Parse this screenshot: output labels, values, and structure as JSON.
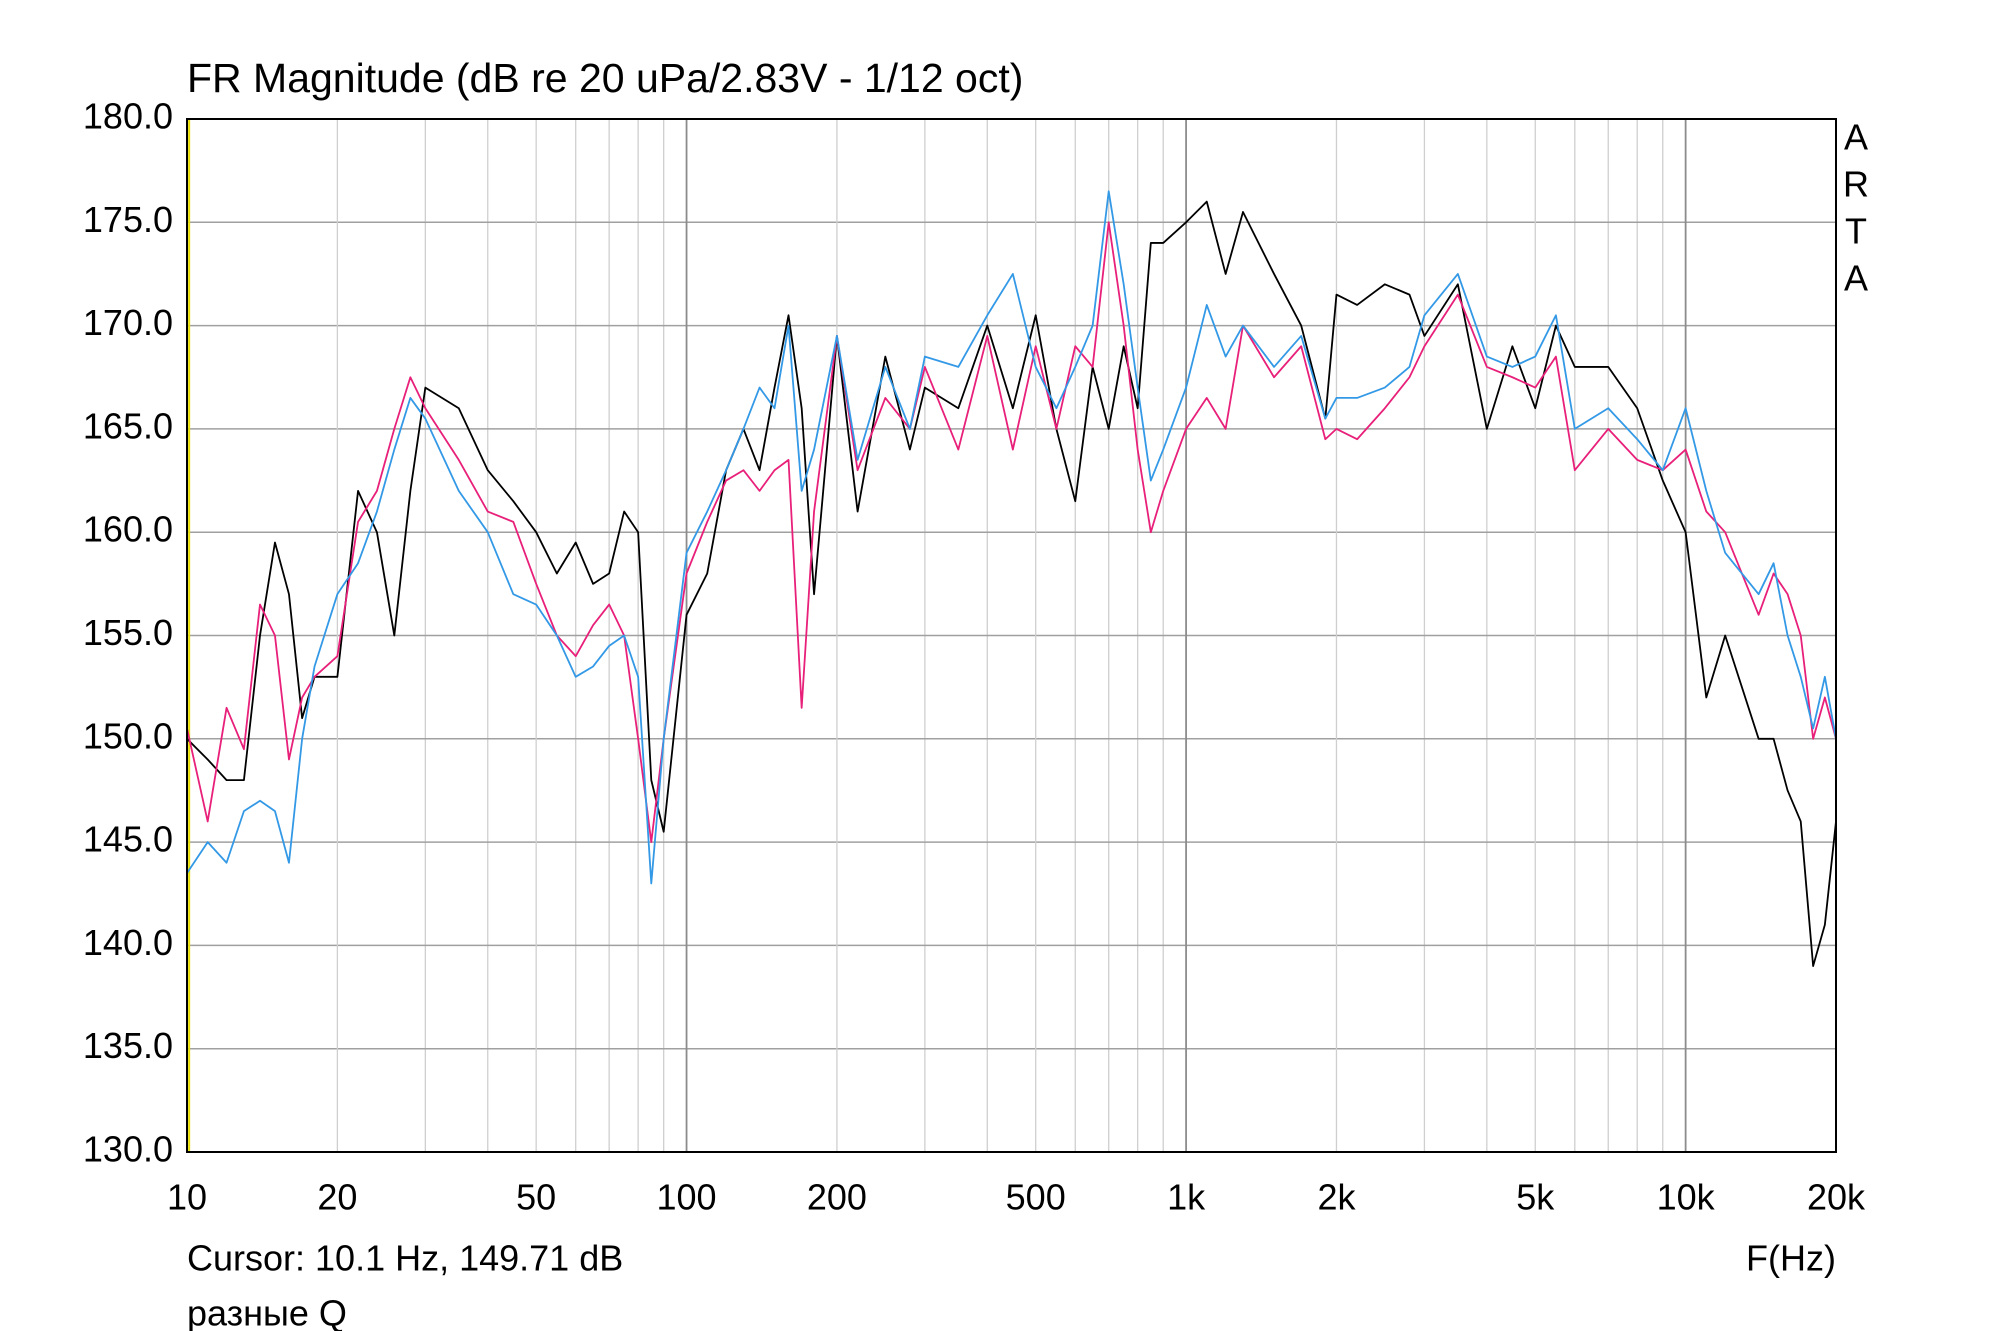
{
  "chart_data": {
    "type": "line",
    "title": "FR Magnitude (dB re 20 uPa/2.83V - 1/12 oct)",
    "watermark": [
      "A",
      "R",
      "T",
      "A"
    ],
    "cursor": {
      "x": 10.1,
      "label": "Cursor: 10.1 Hz, 149.71 dB",
      "color": "#e8e000"
    },
    "x_label": "F(Hz)",
    "note": "разные Q",
    "xscale": "log",
    "xlim": [
      10,
      20000
    ],
    "xticks": [
      10,
      20,
      50,
      100,
      200,
      500,
      {
        "value": 1000,
        "label": "1k"
      },
      {
        "value": 2000,
        "label": "2k"
      },
      {
        "value": 5000,
        "label": "5k"
      },
      {
        "value": 10000,
        "label": "10k"
      },
      {
        "value": 20000,
        "label": "20k"
      }
    ],
    "xminor": [
      30,
      40,
      60,
      70,
      80,
      90,
      300,
      400,
      600,
      700,
      800,
      900,
      3000,
      4000,
      6000,
      7000,
      8000,
      9000
    ],
    "ylim": [
      130,
      180
    ],
    "yticks": [
      {
        "value": 130,
        "label": "130.0"
      },
      {
        "value": 135,
        "label": "135.0"
      },
      {
        "value": 140,
        "label": "140.0"
      },
      {
        "value": 145,
        "label": "145.0"
      },
      {
        "value": 150,
        "label": "150.0"
      },
      {
        "value": 155,
        "label": "155.0"
      },
      {
        "value": 160,
        "label": "160.0"
      },
      {
        "value": 165,
        "label": "165.0"
      },
      {
        "value": 170,
        "label": "170.0"
      },
      {
        "value": 175,
        "label": "175.0"
      },
      {
        "value": 180,
        "label": "180.0"
      }
    ],
    "grid": true,
    "x": [
      10,
      11,
      12,
      13,
      14,
      15,
      16,
      17,
      18,
      20,
      22,
      24,
      26,
      28,
      30,
      35,
      40,
      45,
      50,
      55,
      60,
      65,
      70,
      75,
      80,
      85,
      90,
      100,
      110,
      120,
      130,
      140,
      150,
      160,
      170,
      180,
      200,
      220,
      250,
      280,
      300,
      350,
      400,
      450,
      500,
      550,
      600,
      650,
      700,
      750,
      800,
      850,
      900,
      1000,
      1100,
      1200,
      1300,
      1500,
      1700,
      1900,
      2000,
      2200,
      2500,
      2800,
      3000,
      3500,
      4000,
      4500,
      5000,
      5500,
      6000,
      7000,
      8000,
      9000,
      10000,
      11000,
      12000,
      14000,
      15000,
      16000,
      17000,
      18000,
      19000,
      20000
    ],
    "series": [
      {
        "color": "#000000",
        "values": [
          150,
          149,
          148,
          148,
          155,
          159.5,
          157,
          151,
          153,
          153,
          162,
          160,
          155,
          162,
          167,
          166,
          163,
          161.5,
          160,
          158,
          159.5,
          157.5,
          158,
          161,
          160,
          148,
          145.5,
          156,
          158,
          163,
          165,
          163,
          167,
          170.5,
          166,
          157,
          169.5,
          161,
          168.5,
          164,
          167,
          166,
          170,
          166,
          170.5,
          165,
          161.5,
          168,
          165,
          169,
          166,
          174,
          174,
          175,
          176,
          172.5,
          175.5,
          172.5,
          170,
          165.5,
          171.5,
          171,
          172,
          171.5,
          169.5,
          172,
          165,
          169,
          166,
          170,
          168,
          168,
          166,
          162.5,
          160,
          152,
          155,
          150,
          150,
          147.5,
          146,
          139,
          141,
          146
        ]
      },
      {
        "color": "#e8207a",
        "values": [
          150.5,
          146,
          151.5,
          149.5,
          156.5,
          155,
          149,
          152,
          153,
          154,
          160.5,
          162,
          165,
          167.5,
          166,
          163.5,
          161,
          160.5,
          157.5,
          155,
          154,
          155.5,
          156.5,
          155,
          150,
          145,
          150,
          158,
          160.5,
          162.5,
          163,
          162,
          163,
          163.5,
          151.5,
          161,
          169.5,
          163,
          166.5,
          165,
          168,
          164,
          169.5,
          164,
          169,
          165,
          169,
          168,
          175,
          170,
          164,
          160,
          162,
          165,
          166.5,
          165,
          170,
          167.5,
          169,
          164.5,
          165,
          164.5,
          166,
          167.5,
          169,
          171.5,
          168,
          167.5,
          167,
          168.5,
          163,
          165,
          163.5,
          163,
          164,
          161,
          160,
          156,
          158,
          157,
          155,
          150,
          152,
          150
        ]
      },
      {
        "color": "#3399e6",
        "values": [
          143.5,
          145,
          144,
          146.5,
          147,
          146.5,
          144,
          150,
          153.5,
          157,
          158.5,
          161,
          164,
          166.5,
          165.5,
          162,
          160,
          157,
          156.5,
          155,
          153,
          153.5,
          154.5,
          155,
          153,
          143,
          150,
          159,
          161,
          163,
          165,
          167,
          166,
          170,
          162,
          164,
          169.5,
          163.5,
          168,
          165,
          168.5,
          168,
          170.5,
          172.5,
          168,
          166,
          168,
          170,
          176.5,
          172,
          167,
          162.5,
          164,
          167,
          171,
          168.5,
          170,
          168,
          169.5,
          165.5,
          166.5,
          166.5,
          167,
          168,
          170.5,
          172.5,
          168.5,
          168,
          168.5,
          170.5,
          165,
          166,
          164.5,
          163,
          166,
          162,
          159,
          157,
          158.5,
          155,
          153,
          150.5,
          153,
          150
        ]
      }
    ]
  }
}
